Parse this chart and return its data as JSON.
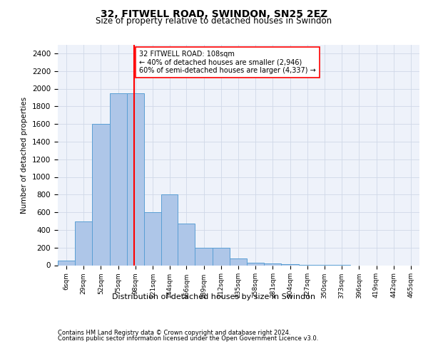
{
  "title_line1": "32, FITWELL ROAD, SWINDON, SN25 2EZ",
  "title_line2": "Size of property relative to detached houses in Swindon",
  "xlabel": "Distribution of detached houses by size in Swindon",
  "ylabel": "Number of detached properties",
  "footer_line1": "Contains HM Land Registry data © Crown copyright and database right 2024.",
  "footer_line2": "Contains public sector information licensed under the Open Government Licence v3.0.",
  "annotation_line1": "32 FITWELL ROAD: 108sqm",
  "annotation_line2": "← 40% of detached houses are smaller (2,946)",
  "annotation_line3": "60% of semi-detached houses are larger (4,337) →",
  "bar_color": "#aec6e8",
  "bar_edge_color": "#5a9fd4",
  "grid_color": "#d0d8e8",
  "redline_value": 108,
  "categories": [
    "6sqm",
    "29sqm",
    "52sqm",
    "75sqm",
    "98sqm",
    "121sqm",
    "144sqm",
    "166sqm",
    "189sqm",
    "212sqm",
    "235sqm",
    "258sqm",
    "281sqm",
    "304sqm",
    "327sqm",
    "350sqm",
    "373sqm",
    "396sqm",
    "419sqm",
    "442sqm",
    "465sqm"
  ],
  "bin_edges": [
    6,
    29,
    52,
    75,
    98,
    121,
    144,
    166,
    189,
    212,
    235,
    258,
    281,
    304,
    327,
    350,
    373,
    396,
    419,
    442,
    465,
    488
  ],
  "values": [
    50,
    500,
    1600,
    1950,
    1950,
    600,
    800,
    470,
    200,
    195,
    80,
    30,
    20,
    10,
    5,
    3,
    1,
    0,
    0,
    0,
    0
  ],
  "ylim": [
    0,
    2500
  ],
  "yticks": [
    0,
    200,
    400,
    600,
    800,
    1000,
    1200,
    1400,
    1600,
    1800,
    2000,
    2200,
    2400
  ],
  "background_color": "#eef2fa"
}
